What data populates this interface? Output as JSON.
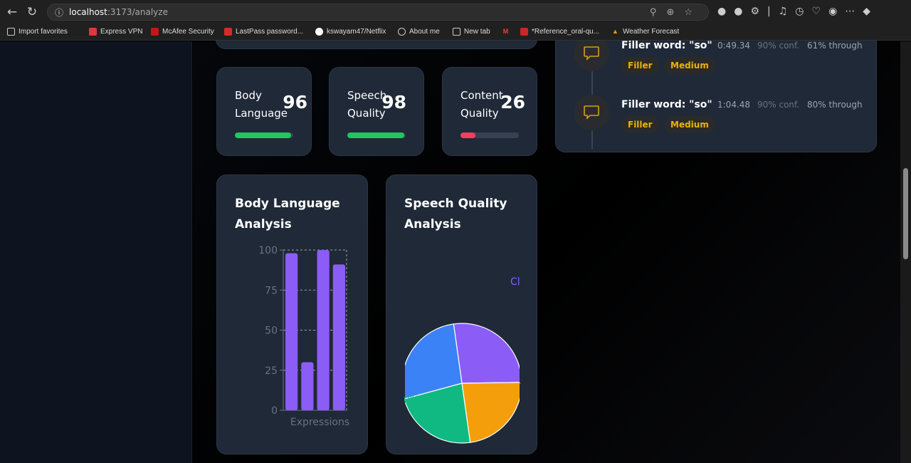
{
  "browser": {
    "url_host": "localhost",
    "url_path": ":3173/analyze",
    "bookmarks": [
      "Import favorites",
      "Express VPN",
      "McAfee Security",
      "LastPass password...",
      "kswayam47/Netflix",
      "About me",
      "New tab",
      "*Reference_oral-qu...",
      "Weather Forecast"
    ]
  },
  "scores": [
    {
      "label": "Body Language",
      "value": "96",
      "pct": 96,
      "color": "#22c55e"
    },
    {
      "label": "Speech Quality",
      "value": "98",
      "pct": 98,
      "color": "#22c55e"
    },
    {
      "label": "Content Quality",
      "value": "26",
      "pct": 26,
      "color": "#f43f5e"
    }
  ],
  "timeline": [
    {
      "title": "Filler word: \"so\"",
      "time": "0:49.34",
      "conf": "90% conf.",
      "through": "61% through",
      "tags": [
        "Filler",
        "Medium"
      ]
    },
    {
      "title": "Filler word: \"so\"",
      "time": "1:04.48",
      "conf": "90% conf.",
      "through": "80% through",
      "tags": [
        "Filler",
        "Medium"
      ]
    }
  ],
  "charts": {
    "body_title": "Body Language Analysis",
    "speech_title": "Speech Quality Analysis"
  },
  "chart_data": [
    {
      "type": "bar",
      "title": "Body Language Analysis",
      "xlabel": "Expressions",
      "ylim": [
        0,
        100
      ],
      "yticks": [
        "0",
        "25",
        "50",
        "75",
        "100"
      ],
      "values": [
        98,
        30,
        100,
        91
      ],
      "color": "#8b5cf6",
      "grid": true
    },
    {
      "type": "pie",
      "title": "Speech Quality Analysis",
      "slices": [
        {
          "value": 27,
          "color": "#8b5cf6",
          "label_visible": "Cl"
        },
        {
          "value": 23,
          "color": "#f59e0b",
          "label_visible": "-"
        },
        {
          "value": 23,
          "color": "#10b981",
          "label_visible": "0%"
        },
        {
          "value": 27,
          "color": "#3b82f6",
          "label_visible": ""
        }
      ]
    }
  ]
}
